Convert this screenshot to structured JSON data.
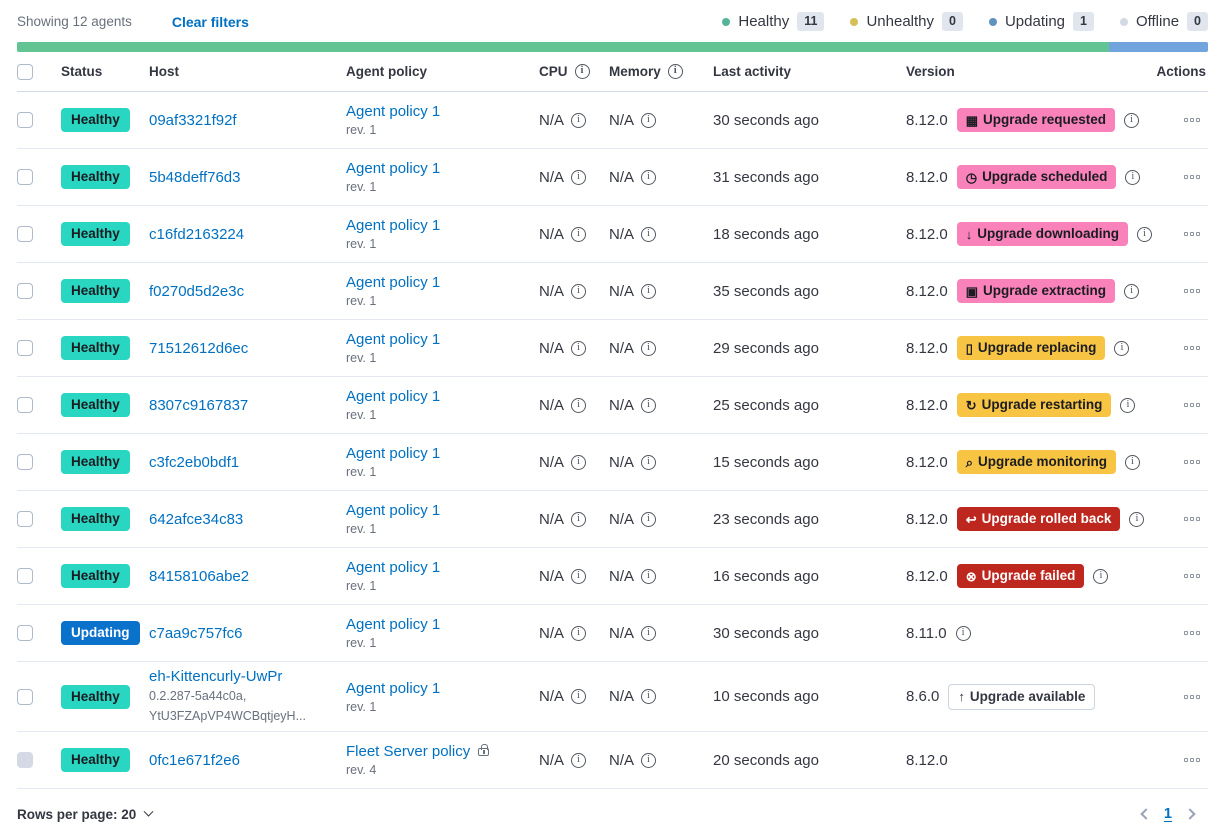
{
  "toolbar": {
    "showing": "Showing 12 agents",
    "clear_filters": "Clear filters"
  },
  "legend": {
    "items": [
      {
        "label": "Healthy",
        "count": "11",
        "color": "#54B399"
      },
      {
        "label": "Unhealthy",
        "count": "0",
        "color": "#D6BF57"
      },
      {
        "label": "Updating",
        "count": "1",
        "color": "#6092C0"
      },
      {
        "label": "Offline",
        "count": "0",
        "color": "#D3DAE6"
      }
    ]
  },
  "health_bar": {
    "segments": [
      {
        "status": "healthy",
        "percent": 91.7,
        "color": "#61C492"
      },
      {
        "status": "updating",
        "percent": 8.3,
        "color": "#71A3DC"
      }
    ]
  },
  "table": {
    "headers": {
      "status": "Status",
      "host": "Host",
      "policy": "Agent policy",
      "cpu": "CPU",
      "memory": "Memory",
      "last_activity": "Last activity",
      "version": "Version",
      "actions": "Actions"
    },
    "rows": [
      {
        "status": {
          "label": "Healthy",
          "type": "healthy"
        },
        "host": {
          "name": "09af3321f92f"
        },
        "policy": {
          "name": "Agent policy 1",
          "rev": "rev. 1",
          "locked": false
        },
        "cpu": "N/A",
        "memory": "N/A",
        "last_activity": "30 seconds ago",
        "version": "8.12.0",
        "version_info": false,
        "upgrade": {
          "label": "Upgrade requested",
          "icon": "calendar-icon",
          "glyph": "▦",
          "type": "pink"
        },
        "upgrade_info": true,
        "checkbox": "enabled"
      },
      {
        "status": {
          "label": "Healthy",
          "type": "healthy"
        },
        "host": {
          "name": "5b48deff76d3"
        },
        "policy": {
          "name": "Agent policy 1",
          "rev": "rev. 1",
          "locked": false
        },
        "cpu": "N/A",
        "memory": "N/A",
        "last_activity": "31 seconds ago",
        "version": "8.12.0",
        "version_info": false,
        "upgrade": {
          "label": "Upgrade scheduled",
          "icon": "clock-icon",
          "glyph": "◷",
          "type": "pink"
        },
        "upgrade_info": true,
        "checkbox": "enabled"
      },
      {
        "status": {
          "label": "Healthy",
          "type": "healthy"
        },
        "host": {
          "name": "c16fd2163224"
        },
        "policy": {
          "name": "Agent policy 1",
          "rev": "rev. 1",
          "locked": false
        },
        "cpu": "N/A",
        "memory": "N/A",
        "last_activity": "18 seconds ago",
        "version": "8.12.0",
        "version_info": false,
        "upgrade": {
          "label": "Upgrade downloading",
          "icon": "download-icon",
          "glyph": "↓",
          "type": "pink"
        },
        "upgrade_info": true,
        "checkbox": "enabled"
      },
      {
        "status": {
          "label": "Healthy",
          "type": "healthy"
        },
        "host": {
          "name": "f0270d5d2e3c"
        },
        "policy": {
          "name": "Agent policy 1",
          "rev": "rev. 1",
          "locked": false
        },
        "cpu": "N/A",
        "memory": "N/A",
        "last_activity": "35 seconds ago",
        "version": "8.12.0",
        "version_info": false,
        "upgrade": {
          "label": "Upgrade extracting",
          "icon": "package-icon",
          "glyph": "▣",
          "type": "pink"
        },
        "upgrade_info": true,
        "checkbox": "enabled"
      },
      {
        "status": {
          "label": "Healthy",
          "type": "healthy"
        },
        "host": {
          "name": "71512612d6ec"
        },
        "policy": {
          "name": "Agent policy 1",
          "rev": "rev. 1",
          "locked": false
        },
        "cpu": "N/A",
        "memory": "N/A",
        "last_activity": "29 seconds ago",
        "version": "8.12.0",
        "version_info": false,
        "upgrade": {
          "label": "Upgrade replacing",
          "icon": "document-icon",
          "glyph": "▯",
          "type": "yellow"
        },
        "upgrade_info": true,
        "checkbox": "enabled"
      },
      {
        "status": {
          "label": "Healthy",
          "type": "healthy"
        },
        "host": {
          "name": "8307c9167837"
        },
        "policy": {
          "name": "Agent policy 1",
          "rev": "rev. 1",
          "locked": false
        },
        "cpu": "N/A",
        "memory": "N/A",
        "last_activity": "25 seconds ago",
        "version": "8.12.0",
        "version_info": false,
        "upgrade": {
          "label": "Upgrade restarting",
          "icon": "refresh-icon",
          "glyph": "↻",
          "type": "yellow"
        },
        "upgrade_info": true,
        "checkbox": "enabled"
      },
      {
        "status": {
          "label": "Healthy",
          "type": "healthy"
        },
        "host": {
          "name": "c3fc2eb0bdf1"
        },
        "policy": {
          "name": "Agent policy 1",
          "rev": "rev. 1",
          "locked": false
        },
        "cpu": "N/A",
        "memory": "N/A",
        "last_activity": "15 seconds ago",
        "version": "8.12.0",
        "version_info": false,
        "upgrade": {
          "label": "Upgrade monitoring",
          "icon": "inspect-icon",
          "glyph": "⌕",
          "type": "yellow"
        },
        "upgrade_info": true,
        "checkbox": "enabled"
      },
      {
        "status": {
          "label": "Healthy",
          "type": "healthy"
        },
        "host": {
          "name": "642afce34c83"
        },
        "policy": {
          "name": "Agent policy 1",
          "rev": "rev. 1",
          "locked": false
        },
        "cpu": "N/A",
        "memory": "N/A",
        "last_activity": "23 seconds ago",
        "version": "8.12.0",
        "version_info": false,
        "upgrade": {
          "label": "Upgrade rolled back",
          "icon": "return-arrow-icon",
          "glyph": "↩",
          "type": "red"
        },
        "upgrade_info": true,
        "checkbox": "enabled"
      },
      {
        "status": {
          "label": "Healthy",
          "type": "healthy"
        },
        "host": {
          "name": "84158106abe2"
        },
        "policy": {
          "name": "Agent policy 1",
          "rev": "rev. 1",
          "locked": false
        },
        "cpu": "N/A",
        "memory": "N/A",
        "last_activity": "16 seconds ago",
        "version": "8.12.0",
        "version_info": false,
        "upgrade": {
          "label": "Upgrade failed",
          "icon": "cross-in-circle-icon",
          "glyph": "⊗",
          "type": "red"
        },
        "upgrade_info": true,
        "checkbox": "enabled"
      },
      {
        "status": {
          "label": "Updating",
          "type": "updating"
        },
        "host": {
          "name": "c7aa9c757fc6"
        },
        "policy": {
          "name": "Agent policy 1",
          "rev": "rev. 1",
          "locked": false
        },
        "cpu": "N/A",
        "memory": "N/A",
        "last_activity": "30 seconds ago",
        "version": "8.11.0",
        "version_info": true,
        "upgrade": null,
        "upgrade_info": false,
        "checkbox": "enabled"
      },
      {
        "status": {
          "label": "Healthy",
          "type": "healthy"
        },
        "host": {
          "name": "eh-Kittencurly-UwPr",
          "sub": [
            "0.2.287-5a44c0a,",
            "YtU3FZApVP4WCBqtjeyH..."
          ]
        },
        "policy": {
          "name": "Agent policy 1",
          "rev": "rev. 1",
          "locked": false
        },
        "cpu": "N/A",
        "memory": "N/A",
        "last_activity": "10 seconds ago",
        "version": "8.6.0",
        "version_info": false,
        "upgrade": {
          "label": "Upgrade available",
          "icon": "arrow-up-icon",
          "glyph": "↑",
          "type": "hollow"
        },
        "upgrade_info": false,
        "checkbox": "enabled"
      },
      {
        "status": {
          "label": "Healthy",
          "type": "healthy"
        },
        "host": {
          "name": "0fc1e671f2e6"
        },
        "policy": {
          "name": "Fleet Server policy",
          "rev": "rev. 4",
          "locked": true
        },
        "cpu": "N/A",
        "memory": "N/A",
        "last_activity": "20 seconds ago",
        "version": "8.12.0",
        "version_info": false,
        "upgrade": null,
        "upgrade_info": false,
        "checkbox": "disabled"
      }
    ]
  },
  "footer": {
    "rows_per_page": "Rows per page: 20",
    "page": "1"
  }
}
